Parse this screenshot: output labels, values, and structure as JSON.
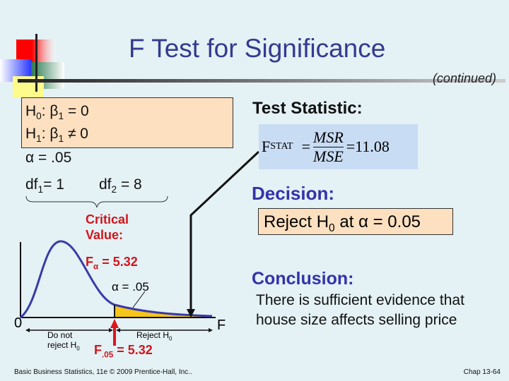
{
  "title": "F Test for Significance",
  "subtitle": "(continued)",
  "hypotheses": {
    "h0": "H",
    "h0_sub": "0",
    "h0_rest": ": β",
    "b1": "1",
    "h0_eq": " = 0",
    "h1": "H",
    "h1_sub": "1",
    "h1_rest": ": β",
    "h1_eq": " ≠ 0"
  },
  "alpha": "α = .05",
  "df1": {
    "label": "df",
    "sub": "1",
    "value": "= 1"
  },
  "df2": {
    "label": "df",
    "sub": "2",
    "value": " = 8"
  },
  "critical": {
    "label1": "Critical",
    "label2": "Value:",
    "f_alpha": "F",
    "f_alpha_sub": "α",
    "f_alpha_value": " = 5.32"
  },
  "plot": {
    "alpha_label": "α = .05",
    "zero": "0",
    "f": "F",
    "do_not": "Do not",
    "reject_h0_left": "reject H",
    "reject_h0_right": "Reject H",
    "h_sub": "0",
    "f05": "F",
    "f05_sub": ".05",
    "f05_value": " = 5.32",
    "curve_color": "#3a3aa8",
    "tail_color": "#f5c518"
  },
  "test_statistic": {
    "label": "Test Statistic:",
    "lhs": "F",
    "lhs_sub": "STAT",
    "num": "MSR",
    "den": "MSE",
    "result": "=11.08"
  },
  "decision": {
    "label": "Decision:",
    "text": "Reject H",
    "sub": "0",
    "rest": " at  α = 0.05"
  },
  "conclusion": {
    "label": "Conclusion:",
    "text": "There is sufficient evidence that house size affects selling price"
  },
  "footer": {
    "left": "Basic Business Statistics, 11e © 2009 Prentice-Hall, Inc..",
    "right": "Chap 13-64"
  }
}
